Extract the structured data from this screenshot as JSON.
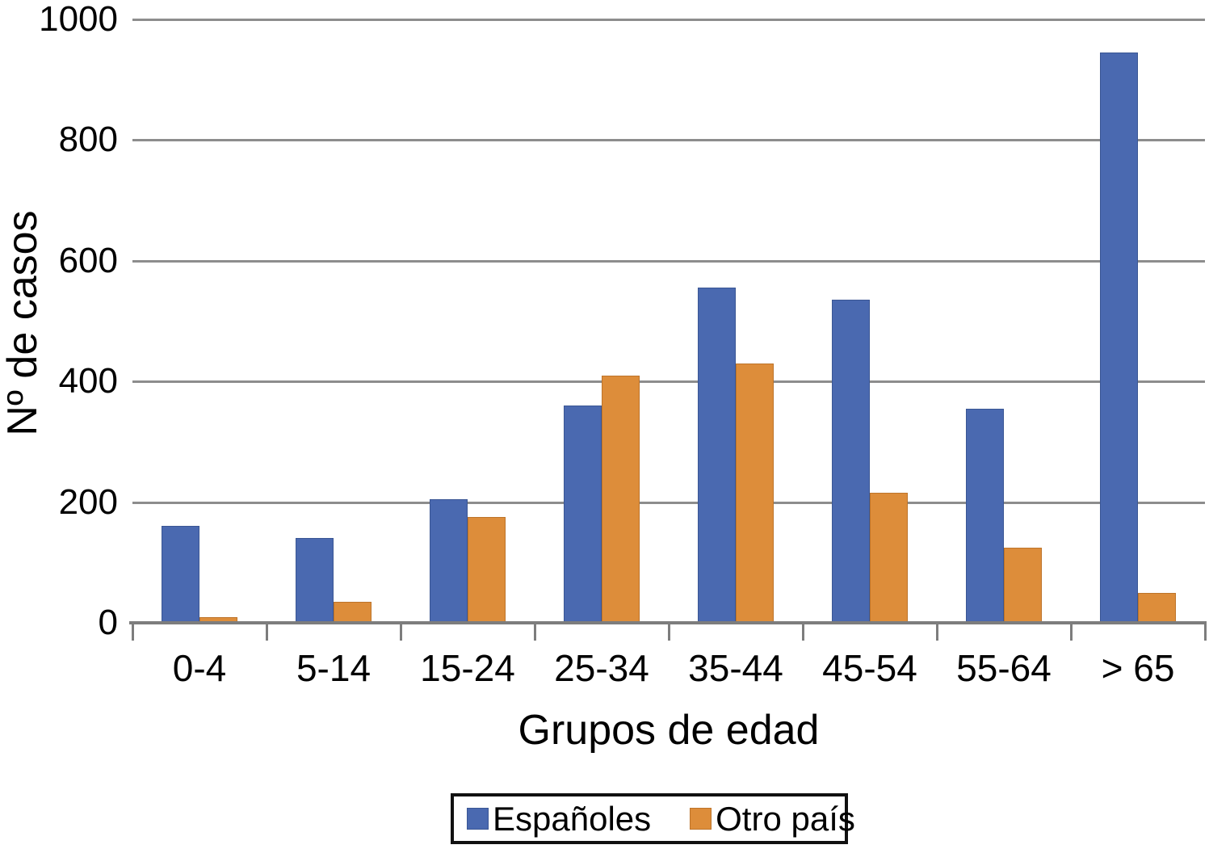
{
  "chart_data": {
    "type": "bar",
    "title": "",
    "categories": [
      "0-4",
      "5-14",
      "15-24",
      "25-34",
      "35-44",
      "45-54",
      "55-64",
      "> 65"
    ],
    "series": [
      {
        "name": "Españoles",
        "color": "#4a69b0",
        "values": [
          160,
          140,
          205,
          360,
          555,
          535,
          355,
          945
        ]
      },
      {
        "name": "Otro país",
        "color": "#dd8d3a",
        "values": [
          10,
          35,
          175,
          410,
          430,
          215,
          125,
          50
        ]
      }
    ],
    "xlabel": "Grupos de edad",
    "ylabel": "Nº de casos",
    "ylim": [
      0,
      1000
    ],
    "yticks": [
      0,
      200,
      400,
      600,
      800,
      1000
    ],
    "grid": true,
    "legend_position": "bottom"
  },
  "colors": {
    "background": "#ffffff",
    "gridline": "#8d8d8d",
    "axis": "#7d7d7d",
    "text": "#000000",
    "legend_border": "#111111"
  }
}
